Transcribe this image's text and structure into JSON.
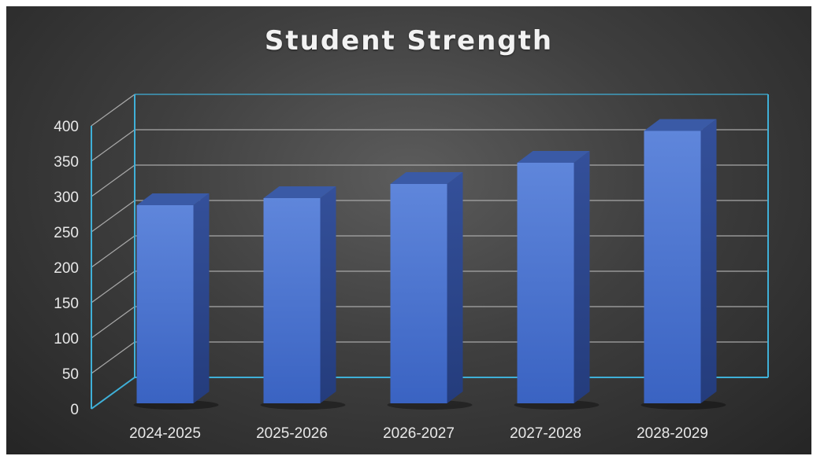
{
  "chart_data": {
    "type": "bar",
    "title": "Student Strength",
    "categories": [
      "2024-2025",
      "2025-2026",
      "2026-2027",
      "2027-2028",
      "2028-2029"
    ],
    "series": [
      {
        "values": [
          280,
          290,
          310,
          340,
          385
        ]
      }
    ],
    "xlabel": "",
    "ylabel": "",
    "ylim": [
      0,
      400
    ],
    "yticks": [
      0,
      50,
      100,
      150,
      200,
      250,
      300,
      350,
      400
    ],
    "grid": true,
    "style": "3d-column",
    "colors": {
      "bar_front": "#4a74d0",
      "bar_side": "#2b4589",
      "bar_top": "#3a5aa6",
      "axis": "#3fb0d8",
      "grid": "#a8a8a8"
    }
  }
}
